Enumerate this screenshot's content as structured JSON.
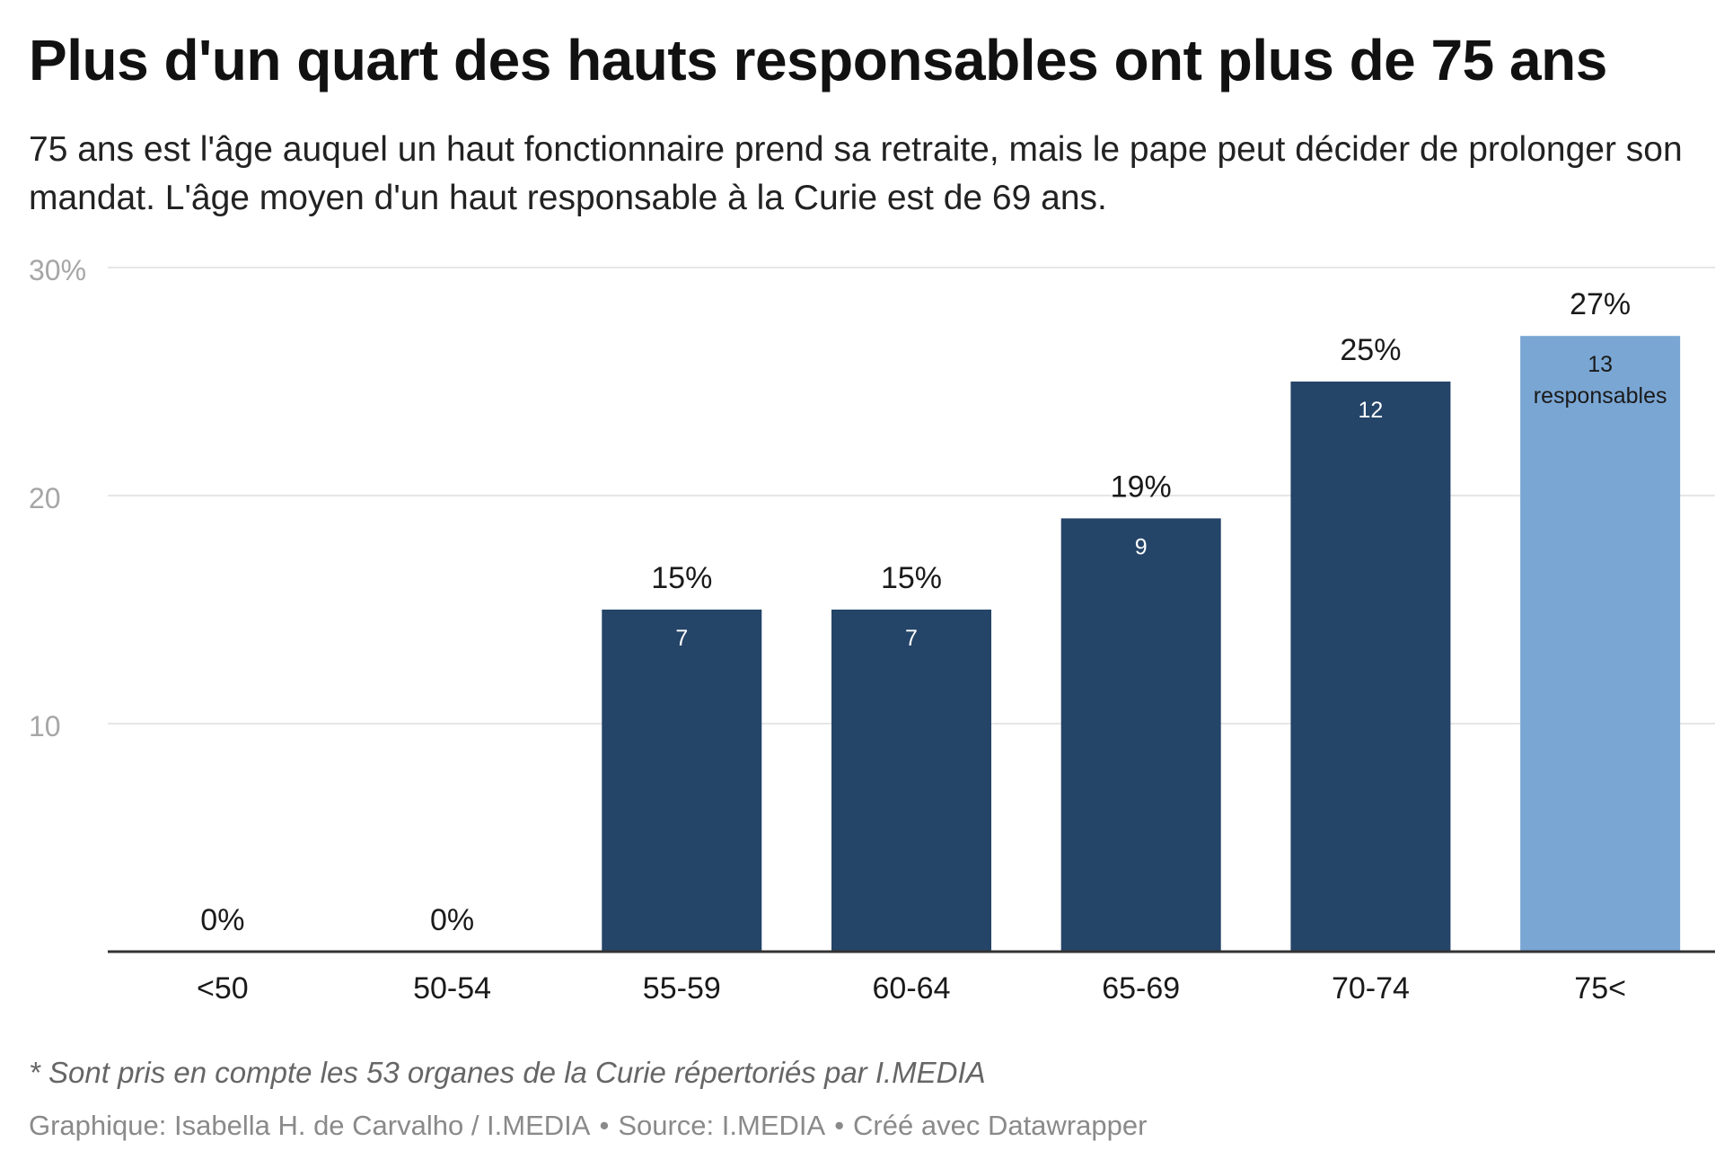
{
  "header": {
    "title": "Plus d'un quart des hauts responsables ont plus de 75 ans",
    "subtitle": "75 ans est l'âge auquel un haut fonctionnaire prend sa retraite, mais le pape peut décider de prolonger son mandat. L'âge moyen d'un haut responsable à la Curie est de 69 ans."
  },
  "chart_data": {
    "type": "bar",
    "categories": [
      "<50",
      "50-54",
      "55-59",
      "60-64",
      "65-69",
      "70-74",
      "75<"
    ],
    "values": [
      0,
      0,
      15,
      15,
      19,
      25,
      27
    ],
    "value_labels": [
      "0%",
      "0%",
      "15%",
      "15%",
      "19%",
      "25%",
      "27%"
    ],
    "count_labels": [
      "",
      "",
      "7",
      "7",
      "9",
      "12",
      "13\nresponsables"
    ],
    "ylim": [
      0,
      30
    ],
    "yticks": [
      10,
      20,
      30
    ],
    "ytick_labels": [
      "10",
      "20",
      "30%"
    ],
    "grid": true,
    "colors": {
      "default_bar": "#244468",
      "highlight_bar": "#7aa6d4",
      "grid": "#e6e6e6",
      "axis": "#333333",
      "tick_label": "#a6a6a6",
      "count_label_on_dark": "#ffffff",
      "count_label_on_light": "#1a1a1a"
    },
    "highlight_index": 6
  },
  "footer": {
    "note": "* Sont pris en compte les 53 organes de la Curie répertoriés par I.MEDIA",
    "credit_graphic": "Graphique: Isabella H. de Carvalho / I.MEDIA",
    "separator": "•",
    "credit_source": "Source: I.MEDIA",
    "credit_tool": "Créé avec Datawrapper"
  }
}
